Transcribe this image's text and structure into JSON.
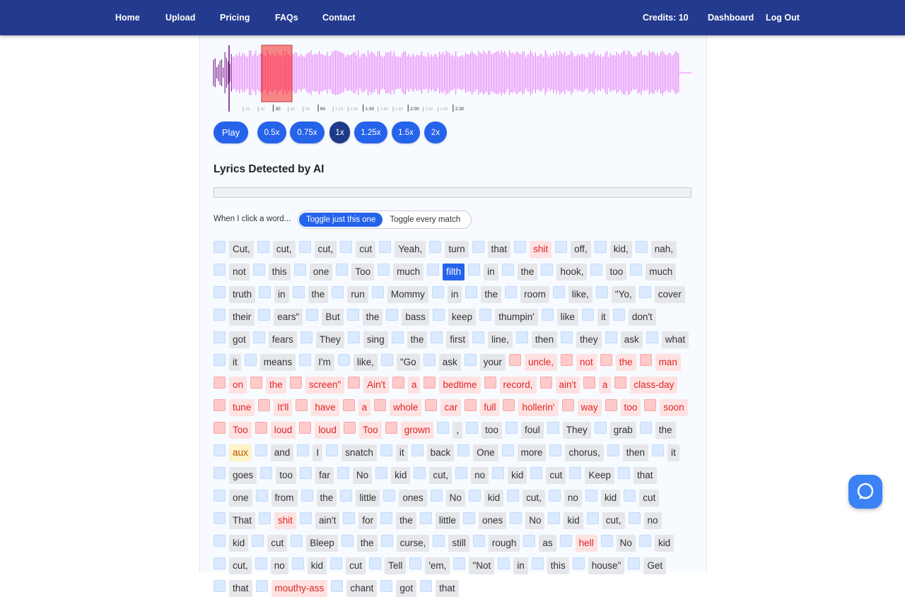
{
  "nav": {
    "links": [
      "Home",
      "Upload",
      "Pricing",
      "FAQs",
      "Contact"
    ],
    "credits": "Credits: 10",
    "right_links": [
      "Dashboard",
      "Log Out"
    ]
  },
  "player": {
    "timeline": [
      "10",
      "20",
      "30",
      "40",
      "50",
      "60",
      "1:10",
      "1:20",
      "1:30",
      "1:40",
      "1:50",
      "2:00",
      "2:10",
      "2:20",
      "2:30"
    ],
    "play": "Play",
    "speeds": [
      "0.5x",
      "0.75x",
      "1x",
      "1.25x",
      "1.5x",
      "2x"
    ],
    "active_speed": "1x"
  },
  "lyrics": {
    "title": "Lyrics Detected by AI",
    "toggle_label": "When I click a word...",
    "toggle_options": [
      "Toggle just this one",
      "Toggle every match"
    ],
    "words": [
      {
        "text": "Cut,"
      },
      {
        "text": "cut,"
      },
      {
        "text": "cut,"
      },
      {
        "text": "cut"
      },
      {
        "text": "Yeah,"
      },
      {
        "text": "turn"
      },
      {
        "text": "that"
      },
      {
        "text": "shit",
        "state": "flagged"
      },
      {
        "text": "off,"
      },
      {
        "text": "kid,"
      },
      {
        "text": "nah,"
      },
      {
        "text": "not"
      },
      {
        "text": "this"
      },
      {
        "text": "one"
      },
      {
        "text": "Too"
      },
      {
        "text": "much"
      },
      {
        "text": "filth",
        "state": "selected"
      },
      {
        "text": "in"
      },
      {
        "text": "the"
      },
      {
        "text": "hook,"
      },
      {
        "text": "too"
      },
      {
        "text": "much"
      },
      {
        "text": "truth"
      },
      {
        "text": "in"
      },
      {
        "text": "the"
      },
      {
        "text": "run"
      },
      {
        "text": "Mommy"
      },
      {
        "text": "in"
      },
      {
        "text": "the"
      },
      {
        "text": "room"
      },
      {
        "text": "like,"
      },
      {
        "text": "\"Yo,"
      },
      {
        "text": "cover"
      },
      {
        "text": "their"
      },
      {
        "text": "ears\""
      },
      {
        "text": "But"
      },
      {
        "text": "the"
      },
      {
        "text": "bass"
      },
      {
        "text": "keep"
      },
      {
        "text": "thumpin'"
      },
      {
        "text": "like"
      },
      {
        "text": "it"
      },
      {
        "text": "don't"
      },
      {
        "text": "got"
      },
      {
        "text": "fears"
      },
      {
        "text": "They"
      },
      {
        "text": "sing"
      },
      {
        "text": "the"
      },
      {
        "text": "first"
      },
      {
        "text": "line,"
      },
      {
        "text": "then"
      },
      {
        "text": "they"
      },
      {
        "text": "ask"
      },
      {
        "text": "what"
      },
      {
        "text": "it"
      },
      {
        "text": "means"
      },
      {
        "text": "I'm"
      },
      {
        "text": "like,"
      },
      {
        "text": "\"Go"
      },
      {
        "text": "ask"
      },
      {
        "text": "your"
      },
      {
        "text": "uncle,",
        "state": "flagged"
      },
      {
        "text": "not",
        "state": "flagged"
      },
      {
        "text": "the",
        "state": "flagged"
      },
      {
        "text": "man",
        "state": "flagged"
      },
      {
        "text": "on",
        "state": "flagged"
      },
      {
        "text": "the",
        "state": "flagged"
      },
      {
        "text": "screen\"",
        "state": "flagged"
      },
      {
        "text": "Ain't",
        "state": "flagged"
      },
      {
        "text": "a",
        "state": "flagged"
      },
      {
        "text": "bedtime",
        "state": "flagged"
      },
      {
        "text": "record,",
        "state": "flagged"
      },
      {
        "text": "ain't",
        "state": "flagged"
      },
      {
        "text": "a",
        "state": "flagged"
      },
      {
        "text": "class-day",
        "state": "flagged"
      },
      {
        "text": "tune",
        "state": "flagged"
      },
      {
        "text": "It'll",
        "state": "flagged"
      },
      {
        "text": "have",
        "state": "flagged"
      },
      {
        "text": "a",
        "state": "flagged"
      },
      {
        "text": "whole",
        "state": "flagged"
      },
      {
        "text": "car",
        "state": "flagged"
      },
      {
        "text": "full",
        "state": "flagged"
      },
      {
        "text": "hollerin'",
        "state": "flagged"
      },
      {
        "text": "way",
        "state": "flagged"
      },
      {
        "text": "too",
        "state": "flagged"
      },
      {
        "text": "soon",
        "state": "flagged"
      },
      {
        "text": "Too",
        "state": "flagged"
      },
      {
        "text": "loud",
        "state": "flagged"
      },
      {
        "text": "loud",
        "state": "flagged"
      },
      {
        "text": "Too",
        "state": "flagged"
      },
      {
        "text": "grown",
        "state": "flagged"
      },
      {
        "text": ","
      },
      {
        "text": "too"
      },
      {
        "text": "foul"
      },
      {
        "text": "They"
      },
      {
        "text": "grab"
      },
      {
        "text": "the"
      },
      {
        "text": "aux",
        "state": "suggested"
      },
      {
        "text": "and"
      },
      {
        "text": "I"
      },
      {
        "text": "snatch"
      },
      {
        "text": "it"
      },
      {
        "text": "back"
      },
      {
        "text": "One"
      },
      {
        "text": "more"
      },
      {
        "text": "chorus,"
      },
      {
        "text": "then"
      },
      {
        "text": "it"
      },
      {
        "text": "goes"
      },
      {
        "text": "too"
      },
      {
        "text": "far"
      },
      {
        "text": "No"
      },
      {
        "text": "kid"
      },
      {
        "text": "cut,"
      },
      {
        "text": "no"
      },
      {
        "text": "kid"
      },
      {
        "text": "cut"
      },
      {
        "text": "Keep"
      },
      {
        "text": "that"
      },
      {
        "text": "one"
      },
      {
        "text": "from"
      },
      {
        "text": "the"
      },
      {
        "text": "little"
      },
      {
        "text": "ones"
      },
      {
        "text": "No"
      },
      {
        "text": "kid"
      },
      {
        "text": "cut,"
      },
      {
        "text": "no"
      },
      {
        "text": "kid"
      },
      {
        "text": "cut"
      },
      {
        "text": "That"
      },
      {
        "text": "shit",
        "state": "flagged"
      },
      {
        "text": "ain't"
      },
      {
        "text": "for"
      },
      {
        "text": "the"
      },
      {
        "text": "little"
      },
      {
        "text": "ones"
      },
      {
        "text": "No"
      },
      {
        "text": "kid"
      },
      {
        "text": "cut,"
      },
      {
        "text": "no"
      },
      {
        "text": "kid"
      },
      {
        "text": "cut"
      },
      {
        "text": "Bleep"
      },
      {
        "text": "the"
      },
      {
        "text": "curse,"
      },
      {
        "text": "still"
      },
      {
        "text": "rough"
      },
      {
        "text": "as"
      },
      {
        "text": "hell",
        "state": "flagged"
      },
      {
        "text": "No"
      },
      {
        "text": "kid"
      },
      {
        "text": "cut,"
      },
      {
        "text": "no"
      },
      {
        "text": "kid"
      },
      {
        "text": "cut"
      },
      {
        "text": "Tell"
      },
      {
        "text": "'em,"
      },
      {
        "text": "\"Not"
      },
      {
        "text": "in"
      },
      {
        "text": "this"
      },
      {
        "text": "house\""
      },
      {
        "text": "Get"
      },
      {
        "text": "that"
      },
      {
        "text": "mouthy-ass",
        "state": "flagged"
      },
      {
        "text": "chant"
      },
      {
        "text": "got"
      },
      {
        "text": "that"
      }
    ]
  }
}
